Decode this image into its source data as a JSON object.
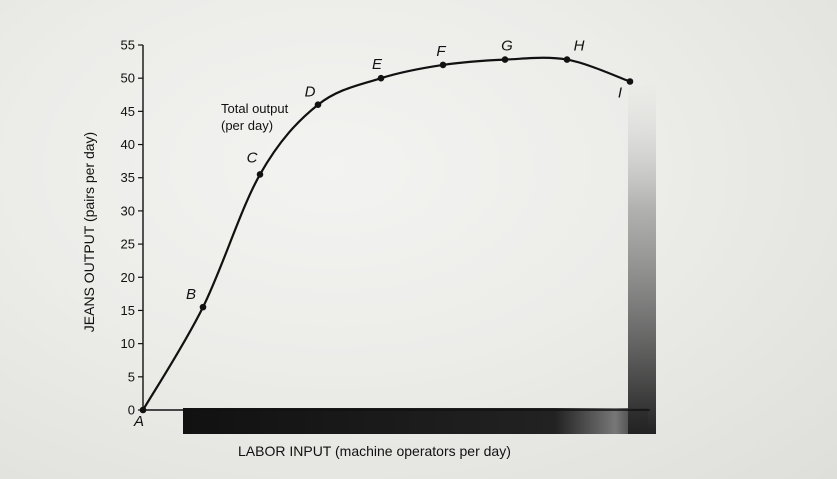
{
  "chart_data": {
    "type": "line",
    "title": "",
    "xlabel": "LABOR INPUT (machine operators per day)",
    "ylabel": "JEANS OUTPUT (pairs per day)",
    "ylim": [
      0,
      55
    ],
    "yticks": [
      0,
      5,
      10,
      15,
      20,
      25,
      30,
      35,
      40,
      45,
      50,
      55
    ],
    "grid": false,
    "legend": "none",
    "annotations": [
      {
        "text_line1": "Total output",
        "text_line2": "(per day)"
      }
    ],
    "series": [
      {
        "points": [
          {
            "label": "A",
            "x": 0,
            "y": 0
          },
          {
            "label": "B",
            "x": 1,
            "y": 15.5
          },
          {
            "label": "C",
            "x": 2,
            "y": 35.5
          },
          {
            "label": "D",
            "x": 3,
            "y": 46
          },
          {
            "label": "E",
            "x": 4,
            "y": 50
          },
          {
            "label": "F",
            "x": 5,
            "y": 52
          },
          {
            "label": "G",
            "x": 6,
            "y": 52.8
          },
          {
            "label": "H",
            "x": 7,
            "y": 52.8
          },
          {
            "label": "I",
            "x": 8,
            "y": 49.5
          }
        ]
      }
    ],
    "colors": {
      "line": "#111111",
      "axis": "#111111"
    }
  }
}
